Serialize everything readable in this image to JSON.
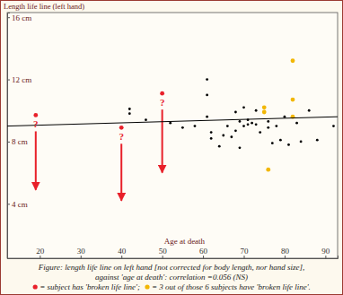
{
  "chart_data": {
    "type": "scatter",
    "y_label": "Length life line (left hand)",
    "x_label": "Age at death",
    "caption": [
      "Figure:  length life line on left hand [not corrected for body length, nor hand size],",
      "against 'age at death': correlation =0.056 (NS)"
    ],
    "xlim": [
      12,
      93
    ],
    "ylim": [
      0.5,
      16.3
    ],
    "xticks": [
      20,
      30,
      40,
      50,
      60,
      70,
      80,
      90
    ],
    "yticks": [
      {
        "value": 4,
        "label": "4 cm"
      },
      {
        "value": 8,
        "label": "8 cm"
      },
      {
        "value": 12,
        "label": "12 cm"
      },
      {
        "value": 16,
        "label": "16 cm"
      }
    ],
    "grid": false,
    "series": [
      {
        "type": "scatter",
        "color": "#000000",
        "marker": "dot",
        "x": [
          42,
          42,
          46,
          52,
          55,
          58,
          61,
          61,
          61,
          62,
          62,
          64,
          65,
          66,
          67,
          68,
          68,
          69,
          69,
          70,
          70,
          71,
          71,
          72,
          73,
          73,
          74,
          76,
          76,
          77,
          78,
          79,
          80,
          81,
          83,
          84,
          86,
          88,
          92
        ],
        "values": [
          10.1,
          9.8,
          9.4,
          9.2,
          8.9,
          9.0,
          12.0,
          11.0,
          9.6,
          8.6,
          8.2,
          7.7,
          8.4,
          9.0,
          8.3,
          8.7,
          9.9,
          7.6,
          9.3,
          10.2,
          9.0,
          9.1,
          9.4,
          9.2,
          10.0,
          9.1,
          8.6,
          8.9,
          9.3,
          7.9,
          9.0,
          8.1,
          9.6,
          7.8,
          9.2,
          8.0,
          10.0,
          8.1,
          9.0
        ]
      },
      {
        "type": "scatter",
        "name": "= subject has 'broken life line';",
        "color": "#e8202a",
        "marker": "dot",
        "x": [
          19,
          40,
          50
        ],
        "values": [
          9.7,
          8.9,
          11.1
        ],
        "point_labels": [
          "?",
          "?",
          "?"
        ],
        "arrow_to": [
          4.9,
          4.2,
          6.0
        ]
      },
      {
        "type": "scatter",
        "name": "= 3 out of those 6 subjects have 'broken life line'.",
        "color": "#f2b705",
        "marker": "dot",
        "x": [
          75,
          75,
          76,
          82,
          82,
          82
        ],
        "values": [
          10.2,
          9.9,
          6.2,
          13.2,
          10.7,
          9.6
        ]
      },
      {
        "type": "line",
        "color": "#000000",
        "x": [
          12,
          93
        ],
        "values": [
          9.0,
          9.6
        ]
      }
    ]
  }
}
